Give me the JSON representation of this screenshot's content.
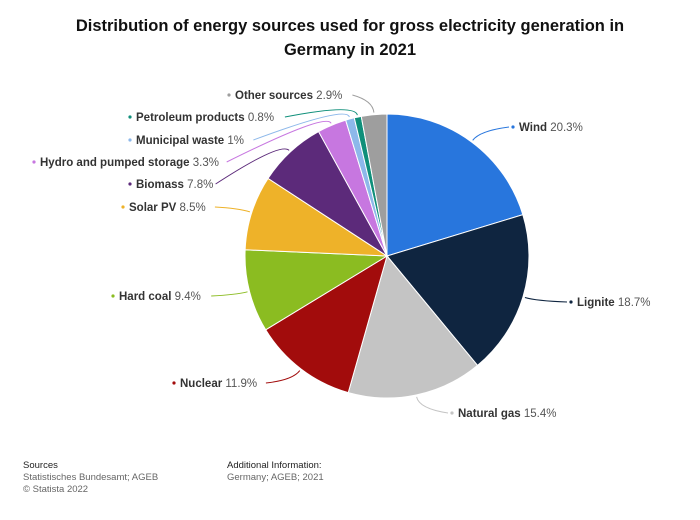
{
  "title_line1": "Distribution of energy sources used for gross electricity generation in",
  "title_line2": "Germany in 2021",
  "footer": {
    "sources_heading": "Sources",
    "sources_text": "Statistisches Bundesamt; AGEB",
    "copyright": "© Statista 2022",
    "info_heading": "Additional Information:",
    "info_text": "Germany; AGEB; 2021"
  },
  "chart_data": {
    "type": "pie",
    "title": "Distribution of energy sources used for gross electricity generation in Germany in 2021",
    "unit": "%",
    "slices": [
      {
        "label": "Wind",
        "value": 20.3,
        "color": "#2876dd"
      },
      {
        "label": "Lignite",
        "value": 18.7,
        "color": "#0f2540"
      },
      {
        "label": "Natural gas",
        "value": 15.4,
        "color": "#c4c4c4"
      },
      {
        "label": "Nuclear",
        "value": 11.9,
        "color": "#a20c0c"
      },
      {
        "label": "Hard coal",
        "value": 9.4,
        "color": "#8bbc21"
      },
      {
        "label": "Solar PV",
        "value": 8.5,
        "color": "#eeb229"
      },
      {
        "label": "Biomass",
        "value": 7.8,
        "color": "#5c2a7a"
      },
      {
        "label": "Hydro and pumped storage",
        "value": 3.3,
        "color": "#c777e0"
      },
      {
        "label": "Municipal waste",
        "value": 1,
        "color": "#8db8ea"
      },
      {
        "label": "Petroleum products",
        "value": 0.8,
        "color": "#0f8f7a"
      },
      {
        "label": "Other sources",
        "value": 2.9,
        "color": "#9e9e9e"
      }
    ]
  }
}
